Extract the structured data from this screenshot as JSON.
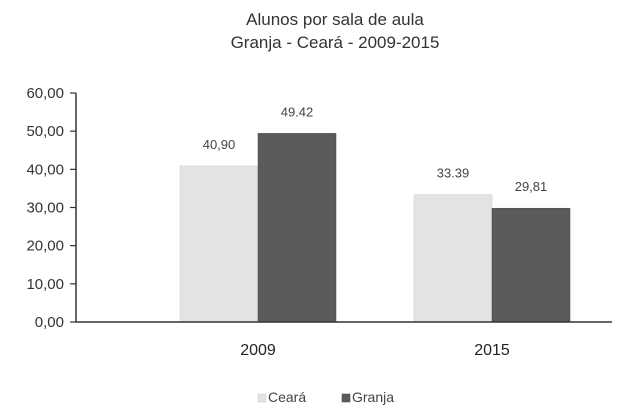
{
  "chart_data": {
    "type": "bar",
    "title_line1": "Alunos por sala de aula",
    "title_line2": "Granja - Ceará - 2009-2015",
    "categories": [
      "2009",
      "2015"
    ],
    "series": [
      {
        "name": "Ceará",
        "values": [
          40.9,
          33.39
        ],
        "labels": [
          "40,90",
          "33.39"
        ],
        "color": "#e3e3e3"
      },
      {
        "name": "Granja",
        "values": [
          49.42,
          29.81
        ],
        "labels": [
          "49.42",
          "29,81"
        ],
        "color": "#5a5a5a"
      }
    ],
    "ylim": [
      0,
      60
    ],
    "yticks": [
      "0,00",
      "10,00",
      "20,00",
      "30,00",
      "40,00",
      "50,00",
      "60,00"
    ],
    "xlabel": "",
    "ylabel": "",
    "grid": false,
    "legend_position": "bottom"
  }
}
